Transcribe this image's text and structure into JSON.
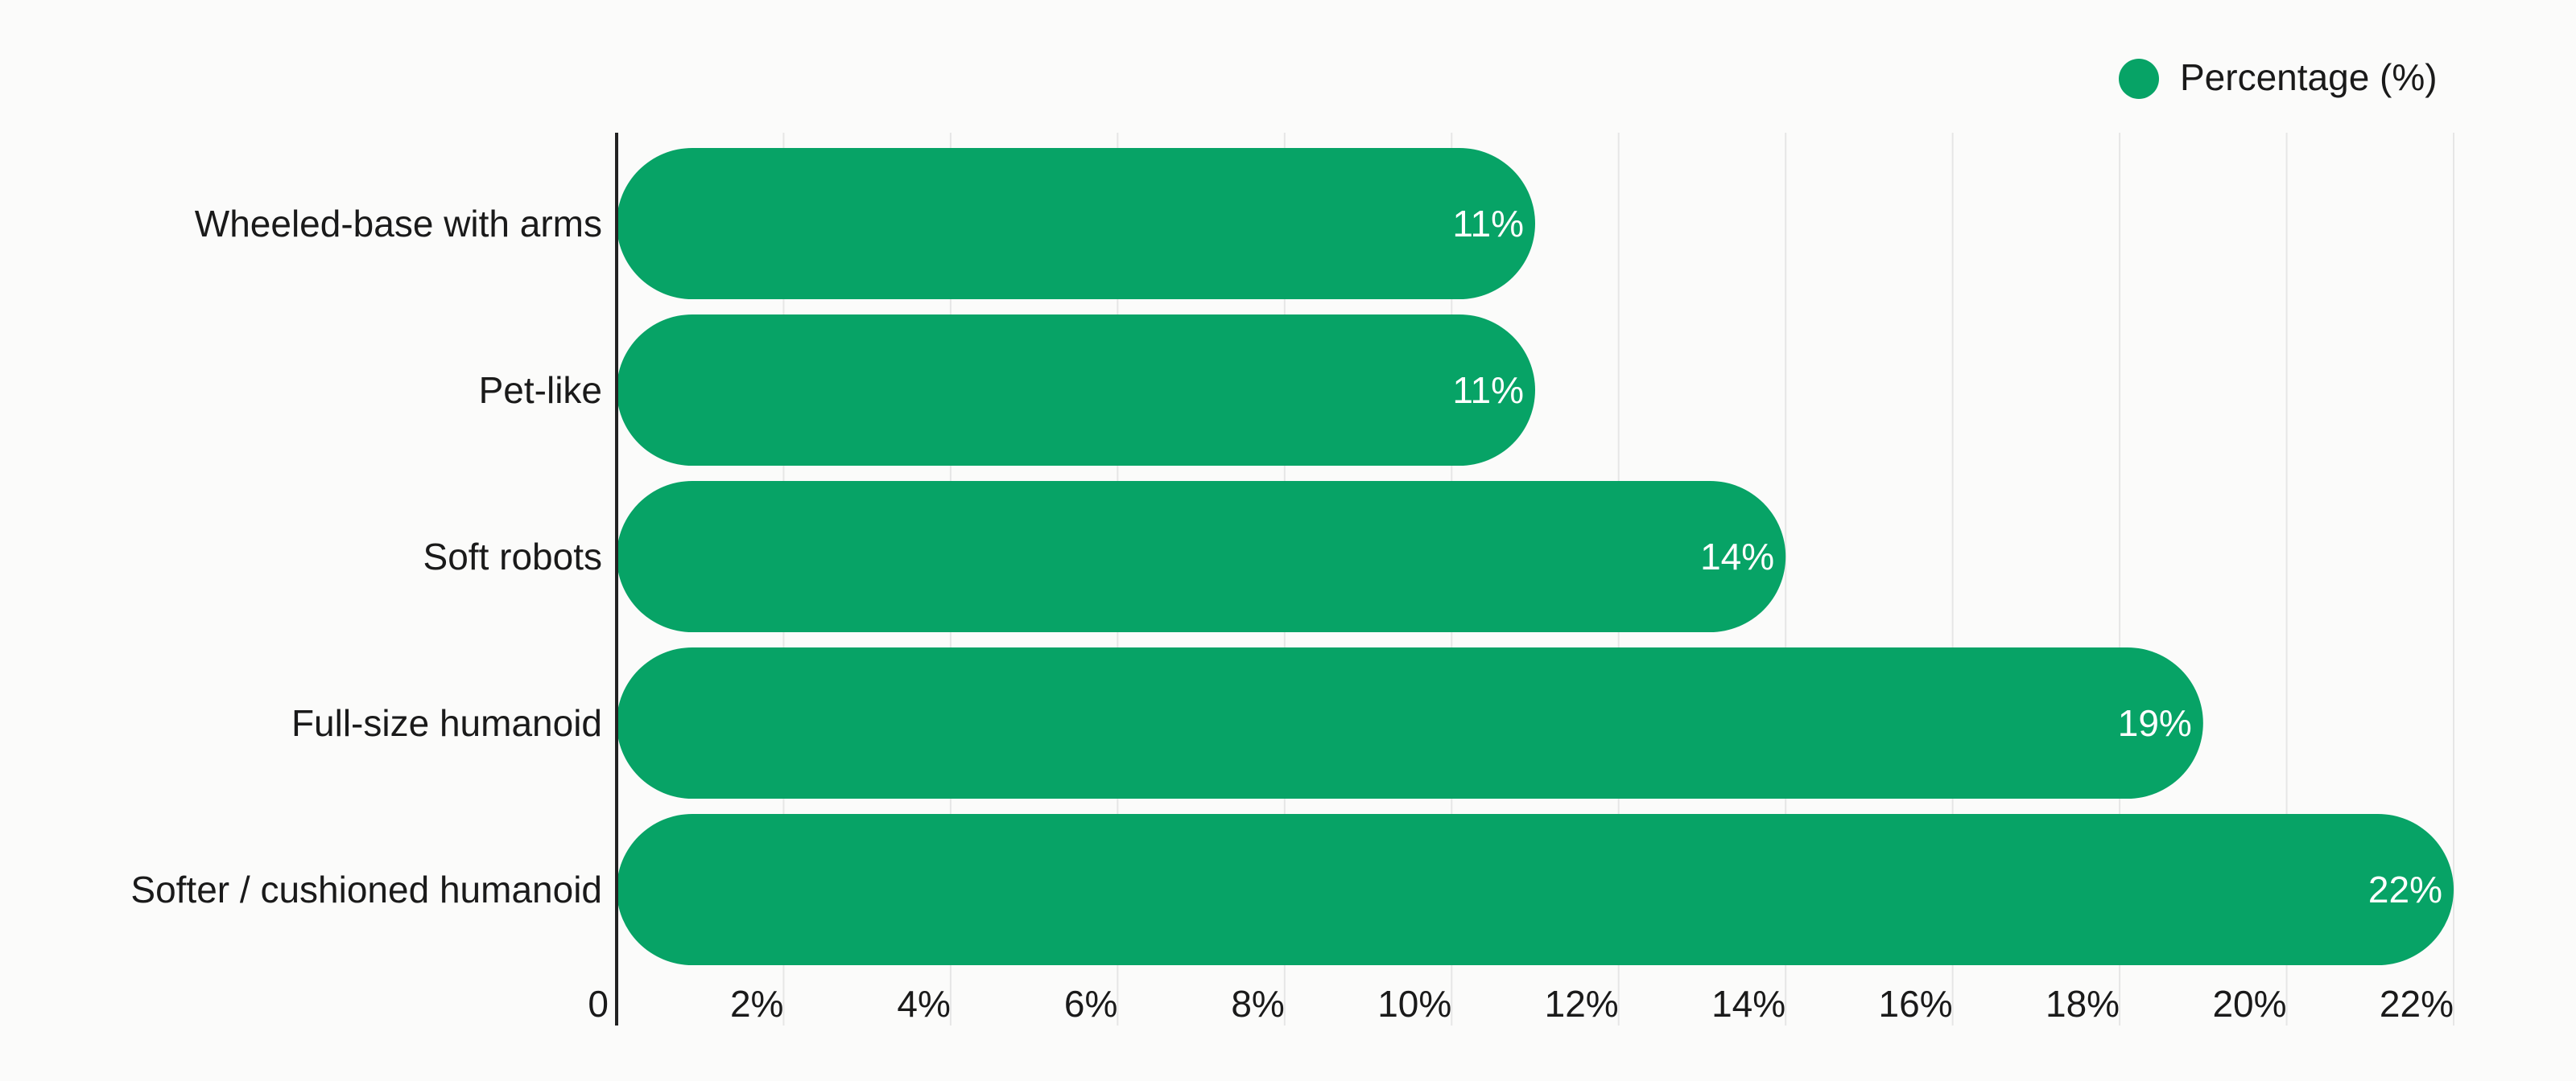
{
  "chart_data": {
    "type": "bar",
    "orientation": "horizontal",
    "categories": [
      "Wheeled-base with arms",
      "Pet-like",
      "Soft robots",
      "Full-size humanoid",
      "Softer / cushioned humanoid"
    ],
    "series": [
      {
        "name": "Percentage (%)",
        "values": [
          11,
          11,
          14,
          19,
          22
        ],
        "data_labels": [
          "11%",
          "11%",
          "14%",
          "19%",
          "22%"
        ]
      }
    ],
    "xlim": [
      0,
      22
    ],
    "x_ticks": [
      0,
      2,
      4,
      6,
      8,
      10,
      12,
      14,
      16,
      18,
      20,
      22
    ],
    "x_tick_labels": [
      "0",
      "2%",
      "4%",
      "6%",
      "8%",
      "10%",
      "12%",
      "14%",
      "16%",
      "18%",
      "20%",
      "22%"
    ],
    "title": "",
    "xlabel": "",
    "ylabel": "",
    "grid": "vertical",
    "legend": {
      "placement": "top-right",
      "entries": [
        "Percentage (%)"
      ]
    },
    "colors": {
      "bar": "#07a366",
      "background": "#fbfbfa"
    }
  }
}
